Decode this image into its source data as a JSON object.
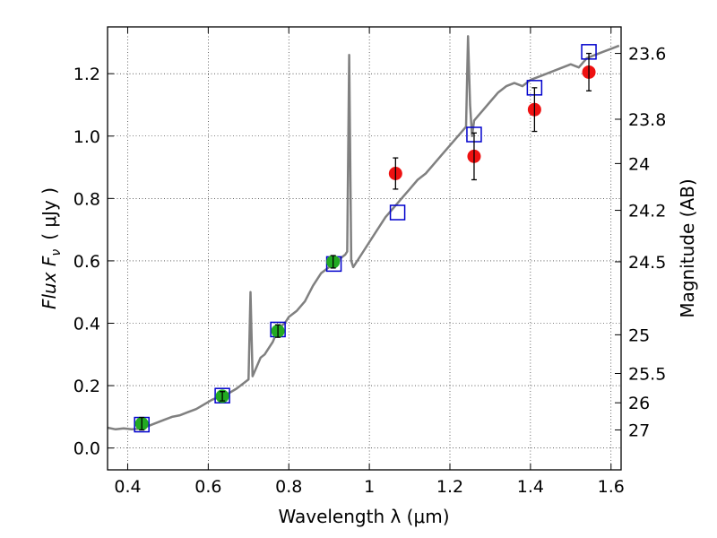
{
  "chart_data": {
    "type": "scatter",
    "xlabel": "Wavelength  λ (μm)",
    "ylabel": "Flux  F",
    "ylabel_sub": "ν",
    "ylabel_units": "( μJy )",
    "y2label": "Magnitude (AB)",
    "xlim": [
      0.35,
      1.625
    ],
    "ylim": [
      -0.07,
      1.35
    ],
    "grid": true,
    "colors": {
      "spectrum": "#808080",
      "model_points": "#0000cc",
      "green_points": "#22aa22",
      "red_points": "#ee1111",
      "errorbars": "#000000"
    },
    "x_ticks": [
      {
        "value": 0.4,
        "label": "0.4"
      },
      {
        "value": 0.6,
        "label": "0.6"
      },
      {
        "value": 0.8,
        "label": "0.8"
      },
      {
        "value": 1.0,
        "label": "1"
      },
      {
        "value": 1.2,
        "label": "1.2"
      },
      {
        "value": 1.4,
        "label": "1.4"
      },
      {
        "value": 1.6,
        "label": "1.6"
      }
    ],
    "y_ticks": [
      {
        "value": 0.0,
        "label": "0.0"
      },
      {
        "value": 0.2,
        "label": "0.2"
      },
      {
        "value": 0.4,
        "label": "0.4"
      },
      {
        "value": 0.6,
        "label": "0.6"
      },
      {
        "value": 0.8,
        "label": "0.8"
      },
      {
        "value": 1.0,
        "label": "1.0"
      },
      {
        "value": 1.2,
        "label": "1.2"
      }
    ],
    "y2_ticks": [
      {
        "flux": 1.265,
        "label": "23.6"
      },
      {
        "flux": 1.054,
        "label": "23.8"
      },
      {
        "flux": 0.912,
        "label": "24"
      },
      {
        "flux": 0.762,
        "label": "24.2"
      },
      {
        "flux": 0.597,
        "label": "24.5"
      },
      {
        "flux": 0.363,
        "label": "25"
      },
      {
        "flux": 0.239,
        "label": "25.5"
      },
      {
        "flux": 0.145,
        "label": "26"
      },
      {
        "flux": 0.058,
        "label": "27"
      }
    ],
    "spectrum": {
      "name": "",
      "x": [
        0.35,
        0.37,
        0.39,
        0.41,
        0.43,
        0.45,
        0.47,
        0.49,
        0.51,
        0.53,
        0.55,
        0.57,
        0.59,
        0.61,
        0.63,
        0.65,
        0.67,
        0.69,
        0.7,
        0.705,
        0.71,
        0.72,
        0.73,
        0.74,
        0.75,
        0.76,
        0.77,
        0.78,
        0.79,
        0.8,
        0.82,
        0.84,
        0.86,
        0.88,
        0.9,
        0.92,
        0.93,
        0.94,
        0.945,
        0.95,
        0.955,
        0.96,
        0.98,
        1.0,
        1.02,
        1.04,
        1.06,
        1.08,
        1.1,
        1.12,
        1.14,
        1.16,
        1.18,
        1.2,
        1.22,
        1.24,
        1.245,
        1.25,
        1.255,
        1.26,
        1.28,
        1.3,
        1.32,
        1.34,
        1.36,
        1.38,
        1.4,
        1.42,
        1.44,
        1.46,
        1.48,
        1.5,
        1.52,
        1.54,
        1.56,
        1.58,
        1.6,
        1.62
      ],
      "y": [
        0.065,
        0.06,
        0.063,
        0.06,
        0.062,
        0.07,
        0.08,
        0.09,
        0.1,
        0.105,
        0.115,
        0.125,
        0.14,
        0.155,
        0.165,
        0.175,
        0.19,
        0.21,
        0.22,
        0.5,
        0.23,
        0.26,
        0.29,
        0.3,
        0.32,
        0.34,
        0.37,
        0.39,
        0.4,
        0.42,
        0.44,
        0.47,
        0.52,
        0.56,
        0.58,
        0.6,
        0.61,
        0.62,
        0.63,
        1.26,
        0.6,
        0.58,
        0.62,
        0.66,
        0.7,
        0.74,
        0.77,
        0.8,
        0.83,
        0.86,
        0.88,
        0.91,
        0.94,
        0.97,
        1.0,
        1.03,
        1.32,
        1.1,
        1.0,
        1.05,
        1.08,
        1.11,
        1.14,
        1.16,
        1.17,
        1.16,
        1.18,
        1.19,
        1.2,
        1.21,
        1.22,
        1.23,
        1.22,
        1.25,
        1.26,
        1.27,
        1.28,
        1.29
      ]
    },
    "model_points": {
      "name": "",
      "x": [
        0.435,
        0.635,
        0.773,
        0.912,
        1.07,
        1.26,
        1.41,
        1.545
      ],
      "y": [
        0.075,
        0.168,
        0.38,
        0.59,
        0.755,
        1.005,
        1.155,
        1.27
      ]
    },
    "green_points": {
      "name": "",
      "x": [
        0.435,
        0.635,
        0.773,
        0.91
      ],
      "y": [
        0.078,
        0.166,
        0.375,
        0.597
      ],
      "yerr": [
        0.02,
        0.015,
        0.02,
        0.02
      ]
    },
    "red_points": {
      "name": "",
      "x": [
        1.065,
        1.26,
        1.41,
        1.545
      ],
      "y": [
        0.88,
        0.935,
        1.085,
        1.205
      ],
      "yerr": [
        0.05,
        0.075,
        0.07,
        0.06
      ]
    }
  }
}
